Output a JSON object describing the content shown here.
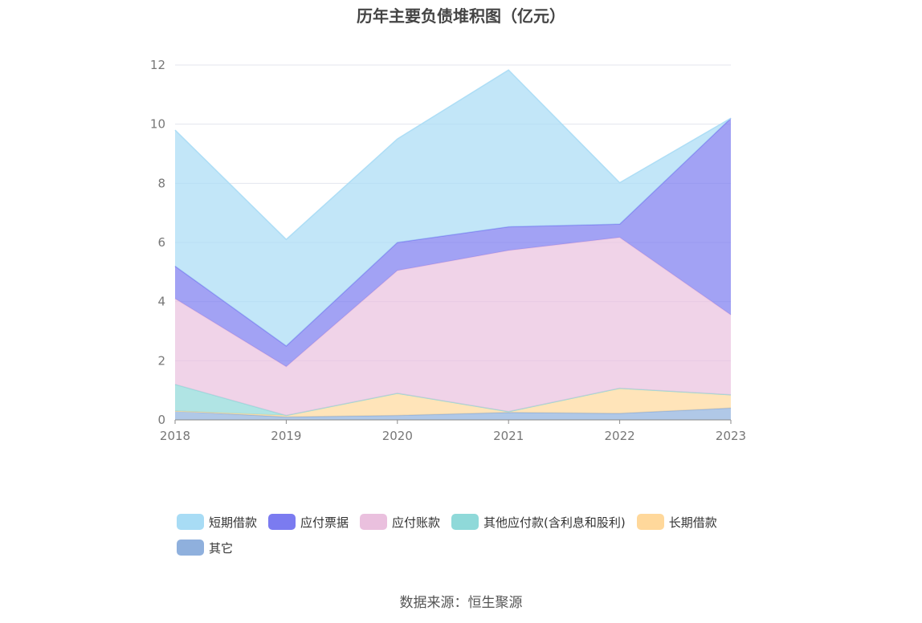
{
  "chart_data": {
    "type": "area",
    "title": "历年主要负债堆积图（亿元）",
    "stacked": true,
    "categories": [
      "2018",
      "2019",
      "2020",
      "2021",
      "2022",
      "2023"
    ],
    "ylim": [
      0,
      12
    ],
    "yticks": [
      0,
      2,
      4,
      6,
      8,
      10,
      12
    ],
    "grid": true,
    "legend_position": "bottom",
    "series": [
      {
        "name": "其它",
        "color": "#8fb0dd",
        "values": [
          0.3,
          0.1,
          0.15,
          0.25,
          0.22,
          0.4
        ]
      },
      {
        "name": "长期借款",
        "color": "#ffd89b",
        "values": [
          0.0,
          0.05,
          0.75,
          0.03,
          0.85,
          0.45
        ]
      },
      {
        "name": "其他应付款(含利息和股利)",
        "color": "#8fd9d9",
        "values": [
          0.9,
          0.0,
          0.0,
          0.0,
          0.0,
          0.0
        ]
      },
      {
        "name": "应付账款",
        "color": "#eac0de",
        "values": [
          2.9,
          1.65,
          4.15,
          5.45,
          5.1,
          2.7
        ]
      },
      {
        "name": "应付票据",
        "color": "#7b7bf0",
        "values": [
          1.1,
          0.7,
          0.95,
          0.8,
          0.45,
          6.65
        ]
      },
      {
        "name": "短期借款",
        "color": "#a8dcf5",
        "values": [
          4.6,
          3.6,
          3.5,
          5.3,
          1.4,
          0.0
        ]
      }
    ],
    "legend_order": [
      "短期借款",
      "应付票据",
      "应付账款",
      "其他应付款(含利息和股利)",
      "长期借款",
      "其它"
    ]
  },
  "source": "数据来源：恒生聚源"
}
